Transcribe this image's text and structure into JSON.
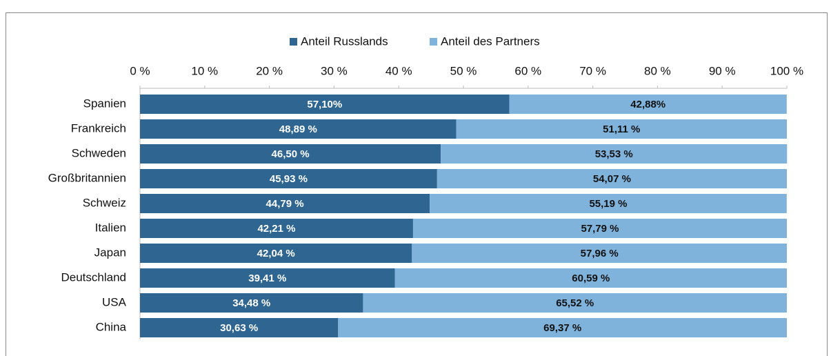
{
  "chart_data": {
    "type": "stacked-barh",
    "categories": [
      "Spanien",
      "Frankreich",
      "Schweden",
      "Großbritannien",
      "Schweiz",
      "Italien",
      "Japan",
      "Deutschland",
      "USA",
      "China"
    ],
    "series": [
      {
        "name": "Anteil Russlands",
        "color": "#2e6591",
        "values": [
          57.1,
          48.89,
          46.5,
          45.93,
          44.79,
          42.21,
          42.04,
          39.41,
          34.48,
          30.63
        ],
        "value_labels": [
          "57,10%",
          "48,89 %",
          "46,50 %",
          "45,93 %",
          "44,79 %",
          "42,21 %",
          "42,04 %",
          "39,41 %",
          "34,48 %",
          "30,63 %"
        ]
      },
      {
        "name": "Anteil des Partners",
        "color": "#80b3dc",
        "values": [
          42.88,
          51.11,
          53.53,
          54.07,
          55.19,
          57.79,
          57.96,
          60.59,
          65.52,
          69.37
        ],
        "value_labels": [
          "42,88%",
          "51,11 %",
          "53,53 %",
          "54,07 %",
          "55,19 %",
          "57,79 %",
          "57,96 %",
          "60,59 %",
          "65,52 %",
          "69,37 %"
        ]
      }
    ],
    "xlim": [
      0,
      100
    ],
    "xticks": [
      {
        "value": 0,
        "label": "0 %"
      },
      {
        "value": 10,
        "label": "10 %"
      },
      {
        "value": 20,
        "label": "20 %"
      },
      {
        "value": 30,
        "label": "30 %"
      },
      {
        "value": 40,
        "label": "40 %"
      },
      {
        "value": 50,
        "label": "50 %"
      },
      {
        "value": 60,
        "label": "60 %"
      },
      {
        "value": 70,
        "label": "70 %"
      },
      {
        "value": 80,
        "label": "80 %"
      },
      {
        "value": 90,
        "label": "90 %"
      },
      {
        "value": 100,
        "label": "100 %"
      }
    ],
    "grid": false,
    "legend": "top"
  }
}
